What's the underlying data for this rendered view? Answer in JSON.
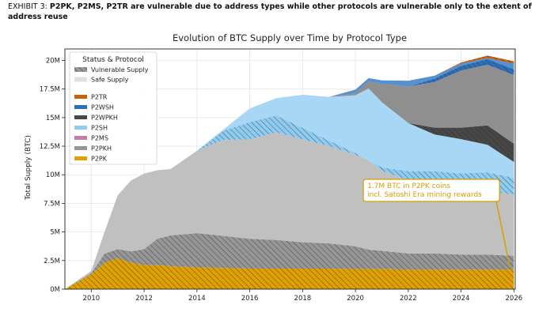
{
  "exhibit": {
    "label": "EXHIBIT 3:",
    "headline": "P2PK, P2MS, P2TR are vulnerable due to address types while other protocols are vulnerable only to the extent of address reuse"
  },
  "chart_data": {
    "type": "area",
    "title": "Evolution of BTC Supply over Time by Protocol Type",
    "xlabel": "",
    "ylabel": "Total Supply (BTC)",
    "xlim": [
      2009,
      2026.05
    ],
    "ylim": [
      0,
      21
    ],
    "x_ticks": [
      "2010",
      "2012",
      "2014",
      "2016",
      "2018",
      "2020",
      "2022",
      "2024",
      "2026"
    ],
    "y_ticks": [
      {
        "v": 0,
        "label": "0M"
      },
      {
        "v": 2.5,
        "label": "2.5M"
      },
      {
        "v": 5,
        "label": "5M"
      },
      {
        "v": 7.5,
        "label": "7.5M"
      },
      {
        "v": 10,
        "label": "10M"
      },
      {
        "v": 12.5,
        "label": "12.5M"
      },
      {
        "v": 15,
        "label": "15M"
      },
      {
        "v": 17.5,
        "label": "17.5M"
      },
      {
        "v": 20,
        "label": "20M"
      }
    ],
    "grid": true,
    "legend": {
      "placement": "top-left",
      "title": "Status & Protocol",
      "status": [
        {
          "name": "Vulnerable Supply",
          "style": "hatched",
          "color": "#9a9a9a"
        },
        {
          "name": "Safe Supply",
          "style": "solid",
          "color": "#e0e0e0"
        }
      ],
      "protocols": [
        {
          "name": "P2TR",
          "color": "#c8620a"
        },
        {
          "name": "P2WSH",
          "color": "#2f6fb5"
        },
        {
          "name": "P2WPKH",
          "color": "#474747"
        },
        {
          "name": "P2SH",
          "color": "#8ecbf1"
        },
        {
          "name": "P2MS",
          "color": "#cc79a7"
        },
        {
          "name": "P2PKH",
          "color": "#969696"
        },
        {
          "name": "P2PK",
          "color": "#e0a100"
        }
      ]
    },
    "x": [
      2009,
      2010,
      2010.5,
      2011,
      2011.5,
      2012,
      2012.5,
      2013,
      2014,
      2015,
      2016,
      2017,
      2018,
      2019,
      2020,
      2020.5,
      2021,
      2022,
      2023,
      2024,
      2025,
      2026
    ],
    "series": [
      {
        "name": "P2PK",
        "vulnerable": [
          0,
          1.3,
          2.3,
          2.7,
          2.3,
          2.1,
          2.1,
          2.0,
          1.9,
          1.85,
          1.8,
          1.8,
          1.8,
          1.8,
          1.75,
          1.75,
          1.75,
          1.72,
          1.72,
          1.72,
          1.72,
          1.72
        ]
      },
      {
        "name": "P2PKH",
        "vulnerable": [
          0,
          0.1,
          0.8,
          0.8,
          1.0,
          1.4,
          2.3,
          2.7,
          3.0,
          2.8,
          2.6,
          2.5,
          2.3,
          2.2,
          2.0,
          1.7,
          1.6,
          1.4,
          1.4,
          1.3,
          1.3,
          1.2
        ],
        "safe": [
          0,
          0.2,
          1.9,
          4.7,
          6.2,
          6.6,
          6.0,
          5.8,
          7.2,
          8.4,
          8.7,
          9.4,
          9.0,
          8.5,
          8.0,
          7.8,
          7.0,
          6.4,
          6.0,
          5.9,
          5.6,
          5.3
        ]
      },
      {
        "name": "P2SH",
        "vulnerable": [
          0,
          0,
          0,
          0,
          0,
          0,
          0,
          0,
          0,
          0.8,
          1.5,
          1.5,
          1.0,
          0.5,
          0.15,
          0,
          0.3,
          0.8,
          1.2,
          1.2,
          1.6,
          1.5
        ],
        "safe": [
          0,
          0,
          0,
          0,
          0,
          0,
          0,
          0,
          0,
          0.1,
          1.2,
          1.5,
          2.9,
          3.8,
          5.05,
          6.3,
          5.7,
          4.2,
          3.2,
          3.0,
          2.4,
          1.4
        ]
      },
      {
        "name": "P2WPKH",
        "vulnerable": [
          0,
          0,
          0,
          0,
          0,
          0,
          0,
          0,
          0,
          0,
          0,
          0,
          0,
          0,
          0,
          0,
          0,
          0,
          0.6,
          1.0,
          1.7,
          1.6
        ],
        "safe": [
          0,
          0,
          0,
          0,
          0,
          0,
          0,
          0,
          0,
          0,
          0,
          0,
          0,
          0,
          0.2,
          0.6,
          1.6,
          3.2,
          4.0,
          5.0,
          5.3,
          6.0
        ]
      },
      {
        "name": "P2WSH",
        "vulnerable": [
          0,
          0,
          0,
          0,
          0,
          0,
          0,
          0,
          0,
          0,
          0,
          0,
          0,
          0,
          0,
          0,
          0,
          0,
          0.3,
          0.4,
          0.5,
          0.5
        ],
        "safe": [
          0,
          0,
          0,
          0,
          0,
          0,
          0,
          0,
          0,
          0,
          0,
          0,
          0,
          0,
          0.3,
          0.3,
          0.3,
          0.5,
          0.25,
          0.2,
          0.1,
          0.5
        ]
      },
      {
        "name": "P2TR",
        "vulnerable": [
          0,
          0,
          0,
          0,
          0,
          0,
          0,
          0,
          0,
          0,
          0,
          0,
          0,
          0,
          0,
          0,
          0,
          0,
          0,
          0.1,
          0.2,
          0.2
        ]
      }
    ],
    "annotations": [
      {
        "text_lines": [
          "1.7M BTC in P2PK coins",
          "incl. Satoshi Era mining rewards"
        ],
        "box_anchor": {
          "x": 2020.3,
          "y": 9.6
        },
        "arrow_to": {
          "x": 2025.85,
          "y": 1.9
        },
        "color": "#d4a000"
      }
    ]
  }
}
